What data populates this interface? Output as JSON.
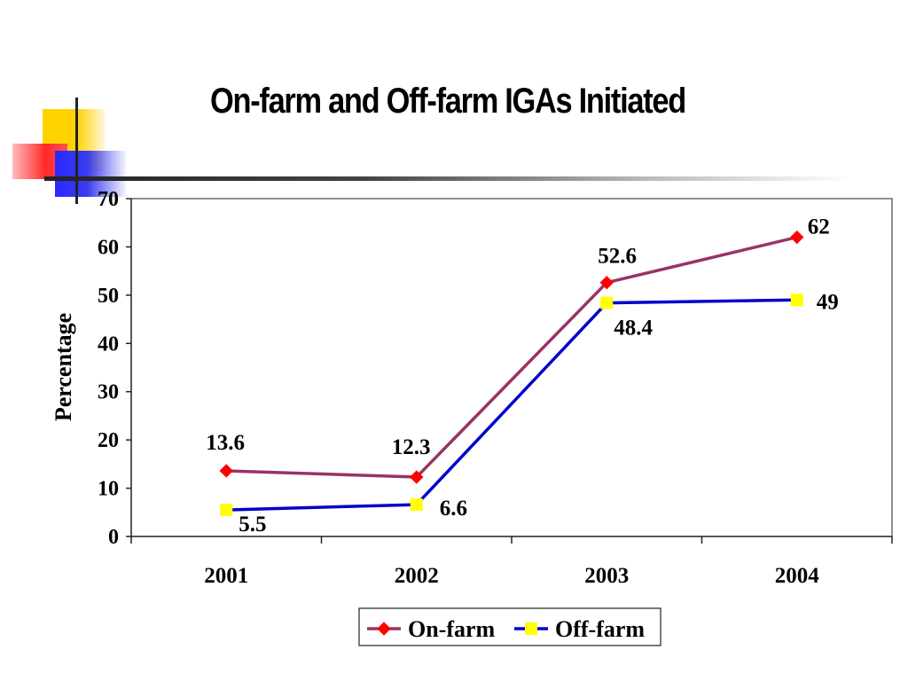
{
  "slide": {
    "title": "On-farm and Off-farm IGAs Initiated"
  },
  "chart_data": {
    "type": "line",
    "title": "",
    "xlabel": "",
    "ylabel": "Percentage",
    "categories": [
      "2001",
      "2002",
      "2003",
      "2004"
    ],
    "ylim": [
      0,
      70
    ],
    "yticks": [
      0,
      10,
      20,
      30,
      40,
      50,
      60,
      70
    ],
    "grid": false,
    "legend_position": "bottom",
    "series": [
      {
        "name": "On-farm",
        "values": [
          13.6,
          12.3,
          52.6,
          62
        ],
        "labels": [
          "13.6",
          "12.3",
          "52.6",
          "62"
        ],
        "line_color": "#993366",
        "marker_color": "#ff0000",
        "marker": "diamond"
      },
      {
        "name": "Off-farm",
        "values": [
          5.5,
          6.6,
          48.4,
          49
        ],
        "labels": [
          "5.5",
          "6.6",
          "48.4",
          "49"
        ],
        "line_color": "#0000cc",
        "marker_color": "#ffff00",
        "marker": "square"
      }
    ]
  }
}
